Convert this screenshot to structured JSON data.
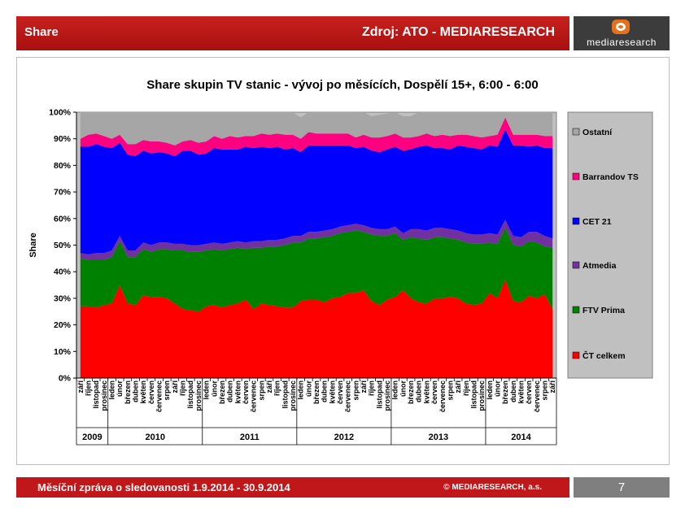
{
  "header": {
    "title": "Share",
    "source": "Zdroj: ATO - MEDIARESEARCH"
  },
  "logo": {
    "text": "mediaresearch"
  },
  "footer": {
    "report": "Měsíční zpráva o sledovanosti 1.9.2014 - 30.9.2014",
    "copyright": "© MEDIARESEARCH, a.s.",
    "page": "7"
  },
  "chart_data": {
    "type": "area",
    "stacked": true,
    "title": "Share skupin TV stanic - vývoj po měsících, Dospělí 15+, 6:00 - 6:00",
    "ylabel": "Share",
    "xlabel": "",
    "ylim": [
      0,
      100
    ],
    "yticks": [
      "0%",
      "10%",
      "20%",
      "30%",
      "40%",
      "50%",
      "60%",
      "70%",
      "80%",
      "90%",
      "100%"
    ],
    "grid": false,
    "legend_position": "right",
    "categories": [
      "září",
      "říjen",
      "listopad",
      "prosinec",
      "leden",
      "únor",
      "březen",
      "duben",
      "květen",
      "červen",
      "červenec",
      "srpen",
      "září",
      "říjen",
      "listopad",
      "prosinec",
      "leden",
      "únor",
      "březen",
      "duben",
      "květen",
      "červen",
      "červenec",
      "srpen",
      "září",
      "říjen",
      "listopad",
      "prosinec",
      "leden",
      "únor",
      "březen",
      "duben",
      "květen",
      "červen",
      "červenec",
      "srpen",
      "září",
      "říjen",
      "listopad",
      "prosinec",
      "leden",
      "únor",
      "březen",
      "duben",
      "květen",
      "červen",
      "červenec",
      "srpen",
      "září",
      "říjen",
      "listopad",
      "prosinec",
      "leden",
      "únor",
      "březen",
      "duben",
      "květen",
      "červen",
      "červenec",
      "srpen",
      "září"
    ],
    "year_groups": [
      {
        "label": "2009",
        "count": 4
      },
      {
        "label": "2010",
        "count": 12
      },
      {
        "label": "2011",
        "count": 12
      },
      {
        "label": "2012",
        "count": 12
      },
      {
        "label": "2013",
        "count": 12
      },
      {
        "label": "2014",
        "count": 9
      }
    ],
    "series": [
      {
        "name": "ČT celkem",
        "color": "#ff0000",
        "values": [
          27,
          27,
          26.5,
          27.5,
          28,
          35,
          28,
          27.5,
          31,
          30.5,
          30.5,
          30,
          28,
          26,
          25.5,
          25,
          27,
          27.5,
          26.5,
          27.5,
          28,
          29.5,
          26,
          28,
          27.5,
          27,
          26.5,
          26.5,
          29,
          29.5,
          29.5,
          28.5,
          30,
          30.5,
          32,
          32,
          33,
          29,
          27.5,
          29.5,
          30.5,
          33,
          30,
          28.5,
          28,
          30,
          30,
          30.5,
          30,
          28,
          27.5,
          28,
          32,
          30,
          37,
          29,
          28.5,
          31,
          30,
          31.5,
          26
        ]
      },
      {
        "name": "FTV Prima",
        "color": "#008000",
        "values": [
          18,
          17.5,
          18,
          17,
          17.5,
          16.5,
          17.5,
          18,
          17.5,
          17,
          18,
          18.5,
          20,
          22,
          22,
          22.5,
          21,
          21,
          21.5,
          21,
          21,
          19,
          23,
          21,
          22,
          22.5,
          23.5,
          24.5,
          22,
          23,
          23,
          24.5,
          23.5,
          24,
          23,
          23.5,
          22,
          25,
          26,
          24,
          24,
          19,
          23,
          24,
          24,
          23,
          23,
          22,
          22,
          23,
          23,
          22.5,
          19,
          20.5,
          19.5,
          21,
          21,
          20.5,
          21,
          18,
          23
        ]
      },
      {
        "name": "Atmedia",
        "color": "#7030a0",
        "values": [
          2,
          2,
          2.5,
          2.5,
          2.5,
          2,
          2.5,
          2.5,
          2.5,
          2.5,
          2.5,
          2.5,
          2.5,
          2.5,
          2.5,
          2.5,
          2.5,
          2.5,
          2.5,
          2.5,
          2.5,
          2.5,
          2.5,
          2.5,
          2.5,
          2.5,
          2.5,
          2.5,
          2.5,
          2.5,
          2.5,
          2.5,
          2.5,
          2.5,
          2.5,
          2.5,
          2.5,
          2.5,
          2.5,
          2.5,
          2.5,
          2.5,
          3,
          3.5,
          3.5,
          3.5,
          3.5,
          3.5,
          3.5,
          3.5,
          3.5,
          3.5,
          3.5,
          3.5,
          3,
          3.5,
          3.5,
          3.5,
          4,
          4,
          3.5
        ]
      },
      {
        "name": "CET 21",
        "color": "#0000ff",
        "values": [
          40,
          40.5,
          41,
          40,
          38.5,
          35,
          36,
          35.5,
          34.5,
          34.5,
          34,
          33.5,
          33,
          35,
          35.5,
          34,
          34,
          35.5,
          35.5,
          35,
          34.5,
          36,
          35,
          35.5,
          34.5,
          35,
          33.5,
          33,
          31.5,
          32.5,
          32.5,
          32,
          31.5,
          30.5,
          30,
          28.5,
          29.5,
          29,
          29,
          30,
          30,
          31,
          30,
          31,
          32,
          30,
          30,
          30,
          32,
          32.5,
          32.5,
          32,
          33,
          33,
          34,
          34,
          34.5,
          32,
          32.5,
          33,
          34
        ]
      },
      {
        "name": "Barrandov TS",
        "color": "#ff0080",
        "values": [
          3,
          4.5,
          4,
          4,
          3.5,
          3,
          4,
          4.5,
          4,
          4.5,
          4,
          4,
          4,
          3.5,
          4,
          4.5,
          4.5,
          4.5,
          4,
          5,
          4.5,
          4,
          4.5,
          5,
          5,
          5,
          5.5,
          5,
          5,
          5,
          4.5,
          4.5,
          4.5,
          4.5,
          4.5,
          4,
          4.5,
          5,
          5.5,
          5,
          5,
          5,
          4.5,
          4,
          4.5,
          4.5,
          5,
          5,
          4,
          4.5,
          4.5,
          4.5,
          3.5,
          4.5,
          4.5,
          4,
          4,
          4.5,
          4,
          4.5,
          4.5
        ]
      },
      {
        "name": "Ostatní",
        "color": "#a6a6a6",
        "values": [
          10,
          8.5,
          8,
          9,
          10,
          8.5,
          12,
          12,
          10.5,
          11,
          11,
          11.5,
          12.5,
          11,
          10.5,
          11.5,
          11,
          9,
          10,
          9,
          9.5,
          9,
          9,
          8,
          8.5,
          8,
          8.5,
          8.5,
          8,
          7.5,
          8,
          8,
          8,
          8,
          8,
          9.5,
          8.5,
          8,
          8.5,
          8.5,
          8,
          8,
          8,
          9,
          8,
          9,
          8.5,
          9,
          8.5,
          8.5,
          9,
          9.5,
          9,
          8.5,
          6.5,
          8.5,
          8.5,
          9,
          8.5,
          9,
          9
        ]
      }
    ]
  }
}
